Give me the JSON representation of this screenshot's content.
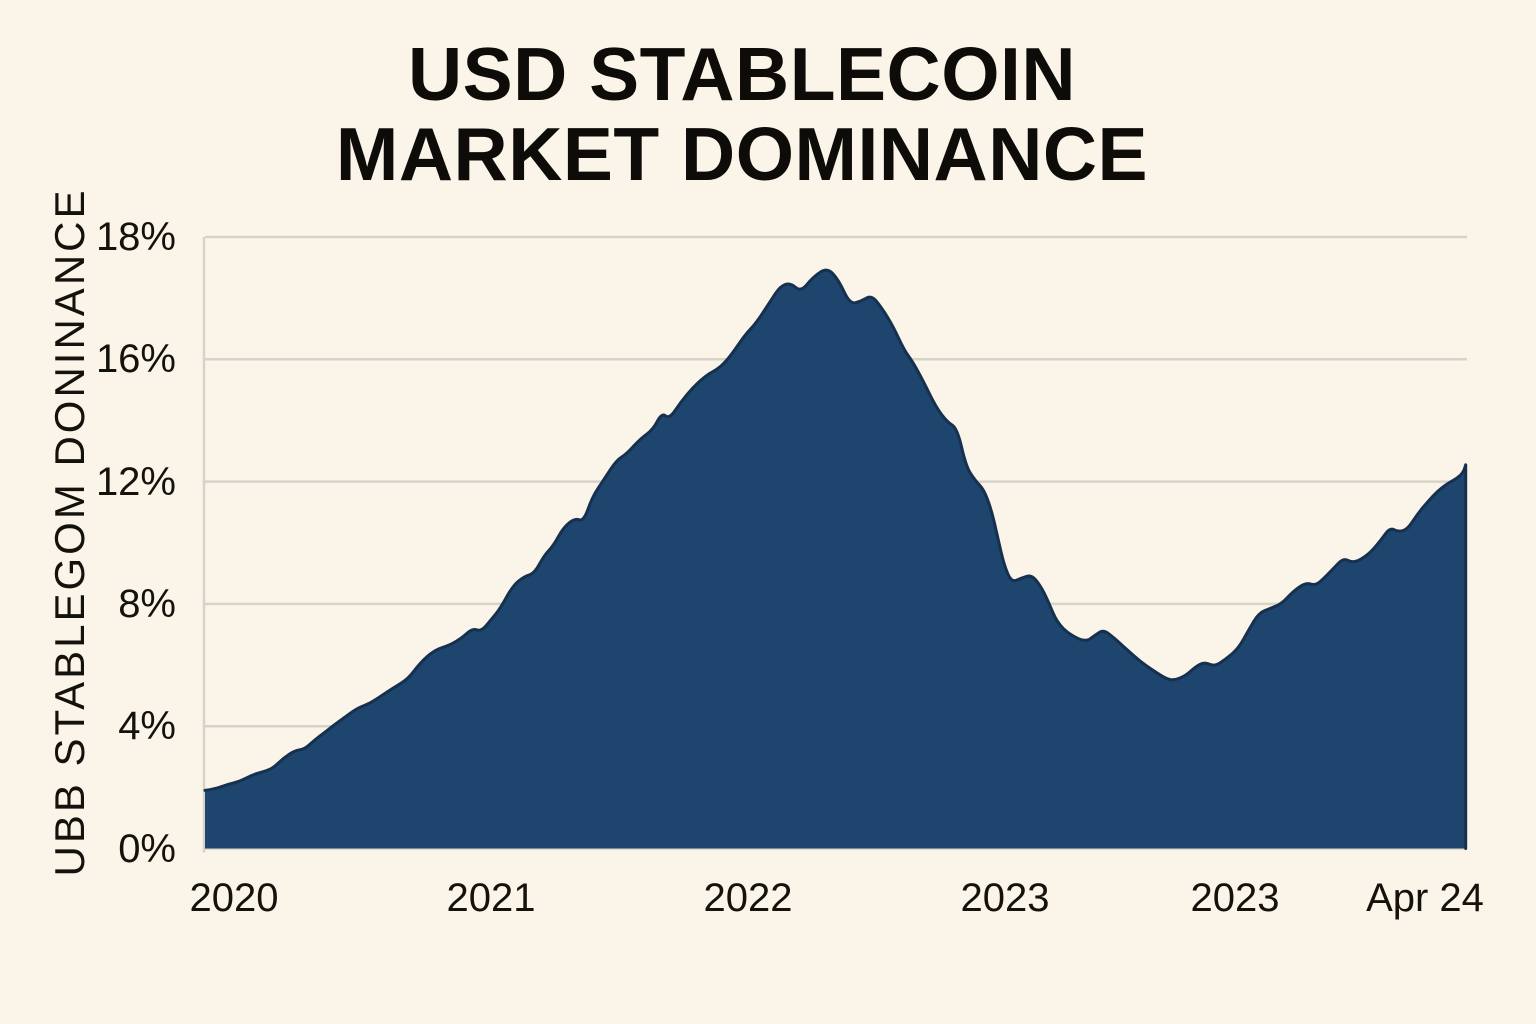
{
  "colors": {
    "background": "#faf4e9",
    "area_fill": "#1e456e",
    "area_stroke": "#16304f",
    "gridline": "#d8d3c9",
    "axis_line": "#d8d3c9",
    "text": "#14120d",
    "title_text": "#0e0c09"
  },
  "chart_data": {
    "type": "area",
    "title": "USD STABLECOIN MARKET DOMINANCE",
    "title_lines": [
      "USD STABLECOIN",
      "MARKET DOMINANCE"
    ],
    "ylabel": "UBB STABLEGOM DONINANCE",
    "xlabel": "",
    "unit": "%",
    "ylim": [
      0,
      18
    ],
    "grid": true,
    "legend": false,
    "axis_note": "y gridlines are equally spaced in pixels although labeled values step 18,16,12,8,4,0 (as in source image)",
    "y_ticks": [
      {
        "label": "18%",
        "value": 18
      },
      {
        "label": "16%",
        "value": 16
      },
      {
        "label": "12%",
        "value": 12
      },
      {
        "label": "8%",
        "value": 8
      },
      {
        "label": "4%",
        "value": 4
      },
      {
        "label": "0%",
        "value": 0
      }
    ],
    "x_ticks": [
      {
        "label": "2020",
        "pos": 0.023
      },
      {
        "label": "2021",
        "pos": 0.227
      },
      {
        "label": "2022",
        "pos": 0.43
      },
      {
        "label": "2023",
        "pos": 0.634
      },
      {
        "label": "2023",
        "pos": 0.816
      },
      {
        "label": "Apr 24",
        "pos": 0.967
      }
    ],
    "series": [
      {
        "name": "USD stablecoin market dominance",
        "points": [
          [
            0.0,
            1.9
          ],
          [
            0.008,
            1.95
          ],
          [
            0.018,
            2.1
          ],
          [
            0.028,
            2.2
          ],
          [
            0.037,
            2.4
          ],
          [
            0.045,
            2.5
          ],
          [
            0.053,
            2.6
          ],
          [
            0.062,
            2.95
          ],
          [
            0.071,
            3.2
          ],
          [
            0.079,
            3.25
          ],
          [
            0.087,
            3.55
          ],
          [
            0.095,
            3.8
          ],
          [
            0.101,
            4.0
          ],
          [
            0.111,
            4.3
          ],
          [
            0.121,
            4.6
          ],
          [
            0.131,
            4.75
          ],
          [
            0.14,
            5.0
          ],
          [
            0.151,
            5.3
          ],
          [
            0.161,
            5.55
          ],
          [
            0.17,
            6.05
          ],
          [
            0.182,
            6.5
          ],
          [
            0.194,
            6.65
          ],
          [
            0.204,
            6.9
          ],
          [
            0.212,
            7.2
          ],
          [
            0.219,
            7.1
          ],
          [
            0.227,
            7.5
          ],
          [
            0.234,
            7.85
          ],
          [
            0.244,
            8.6
          ],
          [
            0.253,
            8.9
          ],
          [
            0.261,
            9.0
          ],
          [
            0.269,
            9.6
          ],
          [
            0.276,
            9.9
          ],
          [
            0.284,
            10.5
          ],
          [
            0.293,
            10.8
          ],
          [
            0.3,
            10.7
          ],
          [
            0.307,
            11.5
          ],
          [
            0.315,
            12.0
          ],
          [
            0.326,
            12.7
          ],
          [
            0.334,
            12.9
          ],
          [
            0.345,
            13.4
          ],
          [
            0.355,
            13.7
          ],
          [
            0.362,
            14.25
          ],
          [
            0.368,
            14.05
          ],
          [
            0.377,
            14.6
          ],
          [
            0.387,
            15.1
          ],
          [
            0.398,
            15.5
          ],
          [
            0.405,
            15.65
          ],
          [
            0.411,
            15.85
          ],
          [
            0.418,
            16.1
          ],
          [
            0.428,
            16.4
          ],
          [
            0.437,
            16.6
          ],
          [
            0.448,
            16.95
          ],
          [
            0.456,
            17.2
          ],
          [
            0.464,
            17.25
          ],
          [
            0.472,
            17.1
          ],
          [
            0.482,
            17.35
          ],
          [
            0.493,
            17.5
          ],
          [
            0.502,
            17.3
          ],
          [
            0.511,
            16.9
          ],
          [
            0.52,
            16.95
          ],
          [
            0.528,
            17.05
          ],
          [
            0.536,
            16.85
          ],
          [
            0.545,
            16.55
          ],
          [
            0.554,
            16.15
          ],
          [
            0.561,
            15.9
          ],
          [
            0.569,
            15.3
          ],
          [
            0.579,
            14.45
          ],
          [
            0.588,
            13.95
          ],
          [
            0.596,
            13.75
          ],
          [
            0.603,
            12.5
          ],
          [
            0.61,
            12.05
          ],
          [
            0.617,
            11.75
          ],
          [
            0.623,
            11.1
          ],
          [
            0.628,
            10.2
          ],
          [
            0.633,
            9.3
          ],
          [
            0.639,
            8.7
          ],
          [
            0.647,
            8.85
          ],
          [
            0.655,
            8.95
          ],
          [
            0.662,
            8.6
          ],
          [
            0.668,
            8.1
          ],
          [
            0.675,
            7.4
          ],
          [
            0.685,
            7.0
          ],
          [
            0.698,
            6.75
          ],
          [
            0.706,
            7.0
          ],
          [
            0.712,
            7.15
          ],
          [
            0.72,
            6.9
          ],
          [
            0.728,
            6.6
          ],
          [
            0.736,
            6.3
          ],
          [
            0.745,
            6.0
          ],
          [
            0.754,
            5.75
          ],
          [
            0.762,
            5.55
          ],
          [
            0.768,
            5.5
          ],
          [
            0.777,
            5.65
          ],
          [
            0.785,
            5.95
          ],
          [
            0.792,
            6.1
          ],
          [
            0.8,
            5.95
          ],
          [
            0.809,
            6.2
          ],
          [
            0.819,
            6.55
          ],
          [
            0.827,
            7.15
          ],
          [
            0.835,
            7.7
          ],
          [
            0.844,
            7.85
          ],
          [
            0.853,
            8.0
          ],
          [
            0.862,
            8.4
          ],
          [
            0.872,
            8.7
          ],
          [
            0.88,
            8.6
          ],
          [
            0.887,
            8.85
          ],
          [
            0.894,
            9.15
          ],
          [
            0.902,
            9.5
          ],
          [
            0.909,
            9.35
          ],
          [
            0.916,
            9.45
          ],
          [
            0.924,
            9.7
          ],
          [
            0.932,
            10.1
          ],
          [
            0.939,
            10.5
          ],
          [
            0.946,
            10.35
          ],
          [
            0.953,
            10.45
          ],
          [
            0.961,
            10.95
          ],
          [
            0.969,
            11.35
          ],
          [
            0.977,
            11.7
          ],
          [
            0.985,
            11.95
          ],
          [
            0.992,
            12.1
          ],
          [
            0.997,
            12.3
          ],
          [
            0.999,
            12.55
          ]
        ]
      }
    ]
  }
}
